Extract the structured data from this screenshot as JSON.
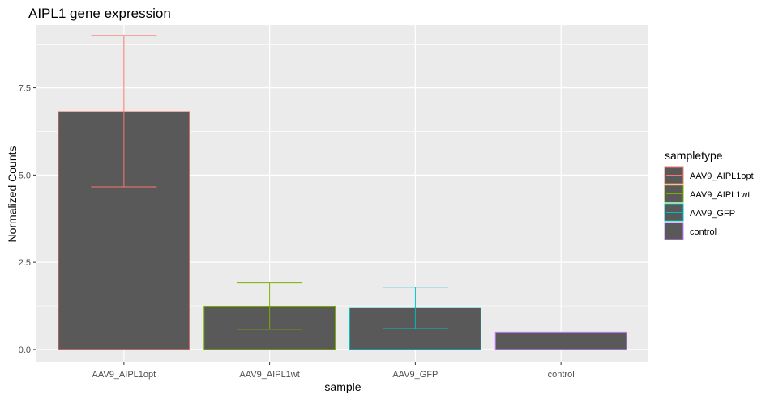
{
  "chart_data": {
    "type": "bar",
    "title": "AIPL1 gene expression",
    "xlabel": "sample",
    "ylabel": "Normalized Counts",
    "ylim": [
      -0.35,
      9.3
    ],
    "yticks": [
      0.0,
      2.5,
      5.0,
      7.5
    ],
    "ytick_labels": [
      "0.0",
      "2.5",
      "5.0",
      "7.5"
    ],
    "grid": true,
    "categories": [
      "AAV9_AIPL1opt",
      "AAV9_AIPL1wt",
      "AAV9_GFP",
      "control"
    ],
    "values": [
      6.82,
      1.24,
      1.2,
      0.5
    ],
    "error_low": [
      4.66,
      0.58,
      0.6,
      null
    ],
    "error_high": [
      9.0,
      1.91,
      1.79,
      null
    ],
    "bar_fill": "#595959",
    "panel_background": "#ebebeb",
    "grid_color": "#ffffff",
    "legend": {
      "title": "sampletype",
      "position": "right",
      "entries": [
        {
          "label": "AAV9_AIPL1opt",
          "color": "#F8766D"
        },
        {
          "label": "AAV9_AIPL1wt",
          "color": "#7CAE00"
        },
        {
          "label": "AAV9_GFP",
          "color": "#00BFC4"
        },
        {
          "label": "control",
          "color": "#C77CFF"
        }
      ]
    }
  }
}
